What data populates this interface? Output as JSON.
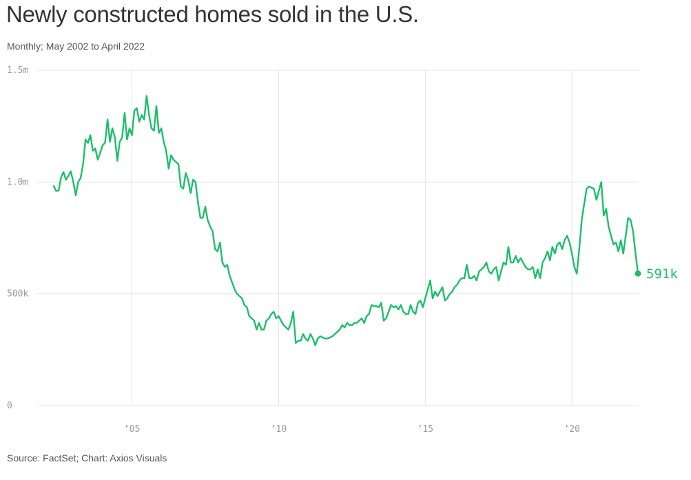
{
  "title": "Newly constructed homes sold in the U.S.",
  "subtitle": "Monthly; May 2002 to April 2022",
  "source": "Source: FactSet; Chart: Axios Visuals",
  "colors": {
    "line": "#1cbf6a",
    "grid": "#e4e4e4",
    "tick": "#999999",
    "text": "#333333"
  },
  "chart_data": {
    "type": "line",
    "title": "Newly constructed homes sold in the U.S.",
    "subtitle": "Monthly; May 2002 to April 2022",
    "x_start": "2002-05",
    "x_end": "2022-04",
    "frequency": "monthly",
    "ylim": [
      0,
      1500000
    ],
    "grid": true,
    "yticks": [
      {
        "value": 0,
        "label": "0"
      },
      {
        "value": 500000,
        "label": "500k"
      },
      {
        "value": 1000000,
        "label": "1.0m"
      },
      {
        "value": 1500000,
        "label": "1.5m"
      }
    ],
    "xticks": [
      {
        "value": 2005,
        "label": "’05"
      },
      {
        "value": 2010,
        "label": "’10"
      },
      {
        "value": 2015,
        "label": "’15"
      },
      {
        "value": 2020,
        "label": "’20"
      }
    ],
    "end_label": "591k",
    "series": [
      {
        "values": [
          982000,
          960000,
          962000,
          1020000,
          1045000,
          1010000,
          1028000,
          1048000,
          1000000,
          940000,
          1000000,
          1018000,
          1080000,
          1190000,
          1175000,
          1210000,
          1140000,
          1150000,
          1100000,
          1130000,
          1165000,
          1175000,
          1280000,
          1180000,
          1240000,
          1200000,
          1095000,
          1180000,
          1200000,
          1310000,
          1190000,
          1240000,
          1210000,
          1320000,
          1330000,
          1270000,
          1300000,
          1280000,
          1385000,
          1300000,
          1240000,
          1230000,
          1340000,
          1220000,
          1240000,
          1180000,
          1140000,
          1060000,
          1120000,
          1100000,
          1090000,
          1080000,
          980000,
          970000,
          1040000,
          1010000,
          950000,
          1010000,
          1000000,
          910000,
          840000,
          840000,
          890000,
          830000,
          800000,
          780000,
          700000,
          690000,
          730000,
          640000,
          620000,
          630000,
          580000,
          550000,
          520000,
          500000,
          490000,
          480000,
          450000,
          440000,
          400000,
          390000,
          380000,
          340000,
          370000,
          340000,
          340000,
          380000,
          390000,
          410000,
          420000,
          390000,
          400000,
          380000,
          360000,
          350000,
          340000,
          370000,
          420000,
          280000,
          290000,
          290000,
          320000,
          300000,
          290000,
          320000,
          300000,
          270000,
          300000,
          310000,
          305000,
          300000,
          300000,
          305000,
          310000,
          320000,
          330000,
          340000,
          360000,
          350000,
          370000,
          360000,
          360000,
          370000,
          370000,
          380000,
          390000,
          370000,
          400000,
          410000,
          450000,
          445000,
          445000,
          440000,
          460000,
          380000,
          390000,
          420000,
          450000,
          440000,
          445000,
          430000,
          450000,
          420000,
          410000,
          410000,
          450000,
          420000,
          410000,
          460000,
          470000,
          440000,
          480000,
          520000,
          560000,
          480000,
          510000,
          490000,
          510000,
          530000,
          470000,
          480000,
          500000,
          510000,
          530000,
          540000,
          560000,
          570000,
          570000,
          630000,
          570000,
          570000,
          580000,
          560000,
          600000,
          610000,
          620000,
          640000,
          600000,
          590000,
          610000,
          620000,
          560000,
          600000,
          640000,
          630000,
          710000,
          640000,
          640000,
          670000,
          640000,
          660000,
          640000,
          620000,
          610000,
          610000,
          620000,
          570000,
          610000,
          570000,
          640000,
          660000,
          690000,
          650000,
          710000,
          680000,
          720000,
          730000,
          700000,
          740000,
          760000,
          730000,
          680000,
          620000,
          590000,
          700000,
          830000,
          900000,
          970000,
          980000,
          975000,
          970000,
          920000,
          960000,
          1000000,
          850000,
          880000,
          800000,
          760000,
          720000,
          730000,
          690000,
          740000,
          680000,
          760000,
          840000,
          830000,
          780000,
          680000,
          591000
        ]
      }
    ]
  }
}
